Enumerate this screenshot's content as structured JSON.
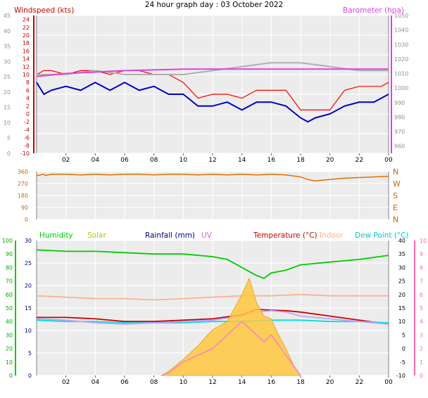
{
  "chart_data": [
    {
      "type": "line",
      "title": "24 hour graph day : 03 October 2022",
      "left_axis_label": "Windspeed (kts)",
      "right_axis_label": "Barometer (hpa)",
      "left_ylim": [
        -10,
        25
      ],
      "left_ticks": [
        "24",
        "22",
        "20",
        "18",
        "16",
        "14",
        "12",
        "10",
        "8",
        "6",
        "4",
        "2",
        "0",
        "-2",
        "-4",
        "-6",
        "-8",
        "-10"
      ],
      "outer_left_ticks": [
        "45",
        "40",
        "35",
        "30",
        "25",
        "20",
        "15",
        "10",
        "5",
        "0"
      ],
      "right_ylim": [
        955,
        1050
      ],
      "right_ticks": [
        "1050",
        "1040",
        "1030",
        "1020",
        "1010",
        "1000",
        "990",
        "980",
        "970",
        "960"
      ],
      "x_ticks": [
        "02",
        "04",
        "06",
        "08",
        "10",
        "12",
        "14",
        "16",
        "18",
        "20",
        "22",
        "00"
      ],
      "grid": true,
      "series": [
        {
          "name": "Windspeed",
          "color": "#ff0000",
          "axis": "left",
          "x": [
            0,
            0.5,
            1,
            2,
            3,
            4,
            5,
            6,
            7,
            8,
            9,
            10,
            11,
            12,
            13,
            14,
            15,
            16,
            17,
            18,
            18.5,
            19,
            20,
            21,
            22,
            23,
            23.5,
            24
          ],
          "values": [
            10,
            11,
            11,
            10,
            11,
            11,
            10,
            11,
            11,
            10,
            10,
            8,
            4,
            5,
            5,
            4,
            6,
            6,
            6,
            1,
            1,
            1,
            1,
            6,
            7,
            7,
            7,
            8
          ]
        },
        {
          "name": "Windspeed avg",
          "color": "#0000cc",
          "axis": "left",
          "x": [
            0,
            0.5,
            1,
            2,
            3,
            4,
            5,
            6,
            7,
            8,
            9,
            10,
            11,
            12,
            13,
            14,
            15,
            16,
            17,
            18,
            18.5,
            19,
            20,
            21,
            22,
            23,
            23.5,
            24
          ],
          "values": [
            8,
            5,
            6,
            7,
            6,
            8,
            6,
            8,
            6,
            7,
            5,
            5,
            2,
            2,
            3,
            1,
            3,
            3,
            2,
            -1,
            -2,
            -1,
            0,
            2,
            3,
            3,
            4,
            5
          ]
        },
        {
          "name": "Gust trend",
          "color": "#b0b0b0",
          "axis": "left",
          "x": [
            0,
            2,
            4,
            6,
            8,
            10,
            12,
            14,
            16,
            18,
            20,
            22,
            24
          ],
          "values": [
            10,
            10,
            11,
            10,
            10,
            10,
            11,
            12,
            13,
            13,
            12,
            11,
            11
          ]
        },
        {
          "name": "Barometer",
          "color": "#e040e0",
          "axis": "right",
          "x": [
            0,
            1,
            2,
            3,
            4,
            5,
            6,
            8,
            10,
            12,
            14,
            16,
            18,
            20,
            22,
            24
          ],
          "values": [
            1008,
            1009,
            1010,
            1010.5,
            1011,
            1011.5,
            1012,
            1012.5,
            1013,
            1013,
            1013,
            1013,
            1013,
            1013,
            1013,
            1013
          ]
        }
      ]
    },
    {
      "type": "scatter",
      "title": "",
      "right_axis_label": "",
      "ylim": [
        0,
        360
      ],
      "y_ticks": [
        "360",
        "270",
        "180",
        "90",
        "0"
      ],
      "compass_labels": [
        "N",
        "W",
        "S",
        "E",
        "N"
      ],
      "series": [
        {
          "name": "Wind direction",
          "color": "#e07000",
          "x": [
            0,
            0.5,
            0.6,
            1,
            2,
            3,
            4,
            5,
            6,
            7,
            8,
            9,
            10,
            11,
            12,
            13,
            14,
            15,
            16,
            17,
            18,
            18.5,
            19,
            20,
            21,
            22,
            23,
            24
          ],
          "values": [
            330,
            340,
            330,
            340,
            340,
            335,
            340,
            335,
            340,
            340,
            335,
            340,
            340,
            335,
            340,
            335,
            340,
            335,
            340,
            335,
            320,
            300,
            290,
            300,
            310,
            315,
            320,
            325
          ]
        }
      ]
    },
    {
      "type": "line",
      "legend": [
        "Humidity",
        "Solar",
        "Rainfall (mm)",
        "UV",
        "Temperature (°C)",
        "Indoor",
        "Dew Point (°C)"
      ],
      "left_ylim": [
        0,
        30
      ],
      "left_ticks": [
        "30",
        "25",
        "20",
        "15",
        "10",
        "5",
        "0"
      ],
      "outer_left_ticks": [
        "100",
        "90",
        "80",
        "70",
        "60",
        "50",
        "40",
        "30",
        "20",
        "10",
        "0"
      ],
      "right_ylim": [
        -10,
        40
      ],
      "right_ticks": [
        "40",
        "35",
        "30",
        "25",
        "20",
        "15",
        "10",
        "5",
        "0",
        "-5",
        "-10"
      ],
      "outer_right_ticks": [
        "10",
        "9",
        "8",
        "7",
        "6",
        "5",
        "4",
        "3",
        "2",
        "1",
        "0"
      ],
      "x_ticks": [
        "02",
        "04",
        "06",
        "08",
        "10",
        "12",
        "14",
        "16",
        "18",
        "20",
        "22",
        "00"
      ],
      "series": [
        {
          "name": "Humidity",
          "color": "#00cc00",
          "x": [
            0,
            2,
            4,
            6,
            8,
            10,
            12,
            13,
            14,
            15,
            15.5,
            16,
            17,
            18,
            20,
            22,
            24
          ],
          "values": [
            93,
            92,
            92,
            91,
            90,
            90,
            88,
            86,
            80,
            74,
            72,
            76,
            78,
            82,
            84,
            86,
            89
          ]
        },
        {
          "name": "Temperature (°C)",
          "color": "#cc0000",
          "x": [
            0,
            2,
            4,
            6,
            8,
            10,
            12,
            14,
            15,
            16,
            17,
            18,
            20,
            22,
            24
          ],
          "values": [
            11.5,
            11.5,
            11,
            10,
            10,
            10.5,
            11,
            12.5,
            14.5,
            14.2,
            14,
            13.5,
            12,
            10.5,
            9
          ]
        },
        {
          "name": "Indoor",
          "color": "#ffb090",
          "x": [
            0,
            2,
            4,
            6,
            8,
            10,
            12,
            14,
            16,
            18,
            20,
            22,
            24
          ],
          "values": [
            19.5,
            19,
            18.5,
            18.5,
            18,
            18.5,
            19,
            19.5,
            19.5,
            20,
            19.5,
            19.5,
            19.5
          ]
        },
        {
          "name": "Dew Point (°C)",
          "color": "#00e0e0",
          "x": [
            0,
            2,
            4,
            6,
            8,
            10,
            12,
            14,
            16,
            18,
            20,
            22,
            24
          ],
          "values": [
            10.5,
            10,
            10,
            9.5,
            9.5,
            9.5,
            10,
            10,
            10.5,
            10.5,
            10,
            10,
            9.5
          ]
        },
        {
          "name": "Apparent",
          "color": "#c0a0ff",
          "x": [
            0,
            2,
            4,
            6,
            8,
            10,
            12,
            14,
            15,
            16,
            17,
            18,
            20,
            22,
            24
          ],
          "values": [
            11,
            10.5,
            9.5,
            9,
            9.5,
            10,
            10.5,
            12,
            13.5,
            14,
            13.5,
            12,
            11,
            10,
            9
          ]
        },
        {
          "name": "Solar",
          "color": "#ffc840",
          "x": [
            8.5,
            9,
            10,
            11,
            12,
            13,
            14,
            14.5,
            15,
            15.5,
            16,
            16.5,
            17,
            17.5,
            18
          ],
          "values": [
            0,
            0.3,
            1.2,
            2.2,
            3.4,
            4.0,
            6.0,
            7.2,
            5.4,
            4.4,
            4.2,
            3.0,
            2.0,
            0.8,
            0
          ]
        },
        {
          "name": "UV",
          "color": "#ff80c0",
          "x": [
            8.5,
            9,
            10,
            11,
            12,
            13,
            14,
            15,
            15.5,
            16,
            17,
            18
          ],
          "values": [
            0,
            0.2,
            1,
            1.5,
            2,
            3,
            4,
            3,
            2.5,
            3,
            1.5,
            0
          ]
        }
      ]
    }
  ]
}
